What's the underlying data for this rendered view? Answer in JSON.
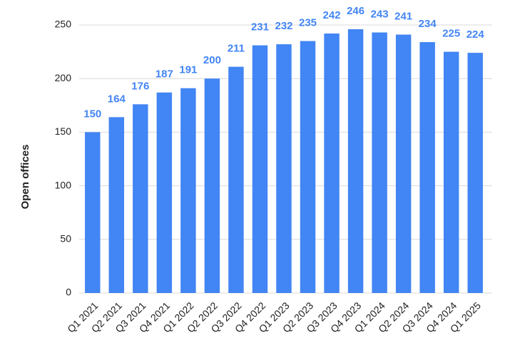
{
  "chart_data": {
    "type": "bar",
    "y_label": "Open offices",
    "categories": [
      "Q1 2021",
      "Q2 2021",
      "Q3 2021",
      "Q4 2021",
      "Q1 2022",
      "Q2 2022",
      "Q3 2022",
      "Q4 2022",
      "Q1 2023",
      "Q2 2023",
      "Q3 2023",
      "Q4 2023",
      "Q1 2024",
      "Q2 2024",
      "Q3 2024",
      "Q4 2024",
      "Q1 2025"
    ],
    "values": [
      150,
      164,
      176,
      187,
      191,
      200,
      211,
      231,
      232,
      235,
      242,
      246,
      243,
      241,
      234,
      225,
      224
    ],
    "color": "#4285f4",
    "ylim": [
      0,
      250
    ],
    "yticks": [
      0,
      50,
      100,
      150,
      200,
      250
    ],
    "grid": true
  }
}
